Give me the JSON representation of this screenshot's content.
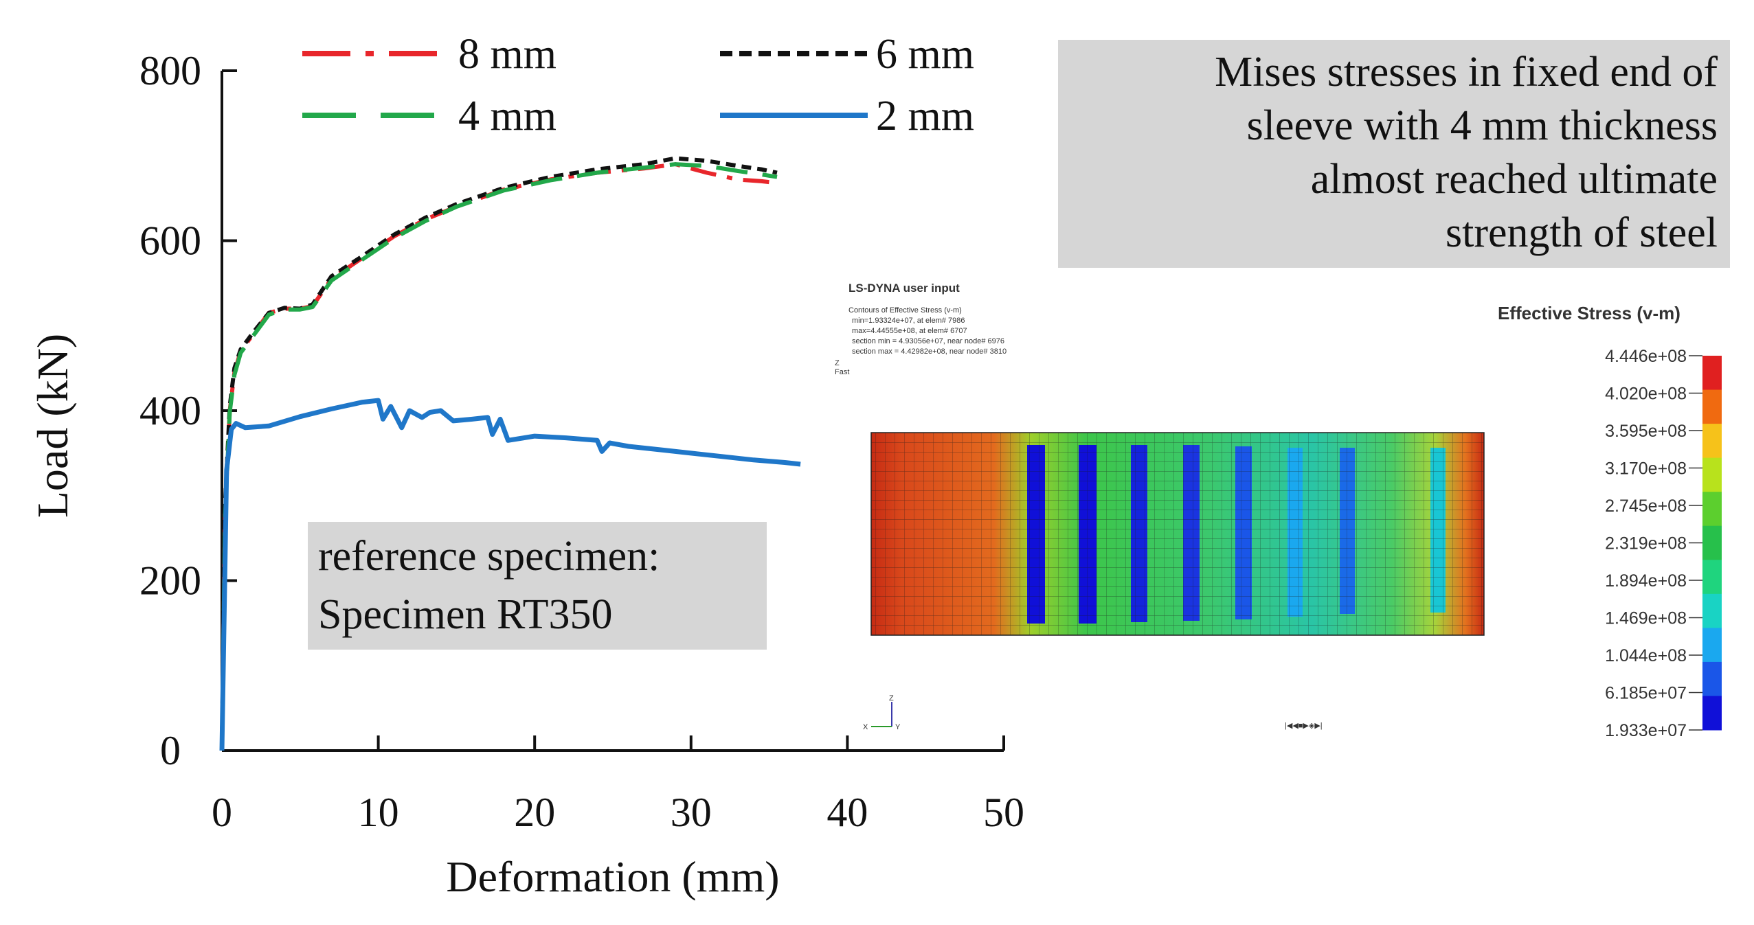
{
  "chart_data": {
    "type": "line",
    "xlabel": "Deformation (mm)",
    "ylabel": "Load (kN)",
    "xlim": [
      0,
      50
    ],
    "ylim": [
      0,
      800
    ],
    "xticks": [
      "0",
      "10",
      "20",
      "30",
      "40",
      "50"
    ],
    "yticks": [
      "0",
      "200",
      "400",
      "600",
      "800"
    ],
    "grid": false,
    "legend_position": "top",
    "series": [
      {
        "name": "8 mm",
        "style": "dash-dot",
        "color": "#e8262b",
        "x": [
          0,
          0.2,
          0.5,
          0.8,
          1.2,
          2,
          3,
          4,
          5,
          5.8,
          7,
          9,
          11,
          13,
          15,
          18,
          21,
          24,
          27,
          29,
          31,
          33,
          34.5,
          35.5
        ],
        "y": [
          0,
          280,
          400,
          445,
          470,
          490,
          515,
          520,
          520,
          523,
          555,
          580,
          605,
          625,
          640,
          660,
          672,
          680,
          685,
          690,
          680,
          672,
          670,
          668
        ]
      },
      {
        "name": "6 mm",
        "style": "dotted",
        "color": "#111111",
        "x": [
          0,
          0.2,
          0.5,
          0.8,
          1.2,
          2,
          3,
          4,
          5,
          5.8,
          7,
          9,
          11,
          13,
          15,
          18,
          21,
          24,
          27,
          29,
          31,
          33,
          34.5,
          35.5
        ],
        "y": [
          0,
          290,
          405,
          450,
          472,
          492,
          515,
          521,
          520,
          525,
          558,
          582,
          607,
          627,
          643,
          662,
          675,
          684,
          690,
          697,
          694,
          688,
          684,
          680
        ]
      },
      {
        "name": "4 mm",
        "style": "long-dash",
        "color": "#22a84a",
        "x": [
          0,
          0.2,
          0.5,
          0.8,
          1.2,
          2,
          3,
          4,
          5,
          5.8,
          7,
          9,
          11,
          13,
          15,
          18,
          21,
          24,
          27,
          29,
          31,
          33,
          34.5,
          35.5
        ],
        "y": [
          0,
          275,
          398,
          442,
          468,
          488,
          513,
          519,
          519,
          522,
          553,
          578,
          603,
          623,
          640,
          659,
          671,
          680,
          686,
          690,
          688,
          682,
          678,
          675
        ]
      },
      {
        "name": "2 mm",
        "style": "solid",
        "color": "#1f77c9",
        "x": [
          0,
          0.3,
          0.6,
          0.9,
          1.5,
          3,
          5,
          7,
          9,
          10,
          10.3,
          10.8,
          11.5,
          12,
          12.8,
          13.3,
          14,
          14.8,
          16,
          17,
          17.3,
          17.8,
          18.3,
          20,
          22,
          24,
          24.3,
          24.8,
          26,
          28,
          30,
          32,
          34,
          36,
          37
        ],
        "y": [
          0,
          330,
          378,
          385,
          380,
          382,
          393,
          402,
          410,
          412,
          390,
          405,
          380,
          400,
          392,
          398,
          400,
          388,
          390,
          392,
          372,
          390,
          365,
          370,
          368,
          365,
          352,
          362,
          358,
          354,
          350,
          346,
          342,
          339,
          337
        ]
      }
    ],
    "annotations": [
      "reference specimen:",
      "Specimen RT350",
      "Mises stresses in fixed end of",
      "sleeve with 4 mm thickness",
      "almost reached ultimate",
      "strength of steel"
    ]
  },
  "fem_inset": {
    "header": "LS-DYNA user input",
    "info_lines": [
      "Contours of Effective Stress (v-m)",
      "min=1.93324e+07, at elem# 7986",
      "max=4.44555e+08, at elem# 6707",
      "section min = 4.93056e+07, near node# 6976",
      "section max = 4.42982e+08, near node# 3810"
    ],
    "side_marks": [
      "Z",
      "Fast"
    ],
    "colorbar_title": "Effective Stress (v-m)",
    "colorbar_labels": [
      "4.446e+08",
      "4.020e+08",
      "3.595e+08",
      "3.170e+08",
      "2.745e+08",
      "2.319e+08",
      "1.894e+08",
      "1.469e+08",
      "1.044e+08",
      "6.185e+07",
      "1.933e+07"
    ],
    "colorbar_colors": [
      "#e02020",
      "#f06a10",
      "#f6c21a",
      "#b8e21c",
      "#5ccf2e",
      "#27c04b",
      "#1fd47e",
      "#19d3c4",
      "#1aa8ef",
      "#1a56e8",
      "#1010d8"
    ],
    "axis_triad_labels": [
      "Z",
      "Y",
      "X"
    ],
    "controls_label": "|◀◀■▶◈▶|"
  }
}
